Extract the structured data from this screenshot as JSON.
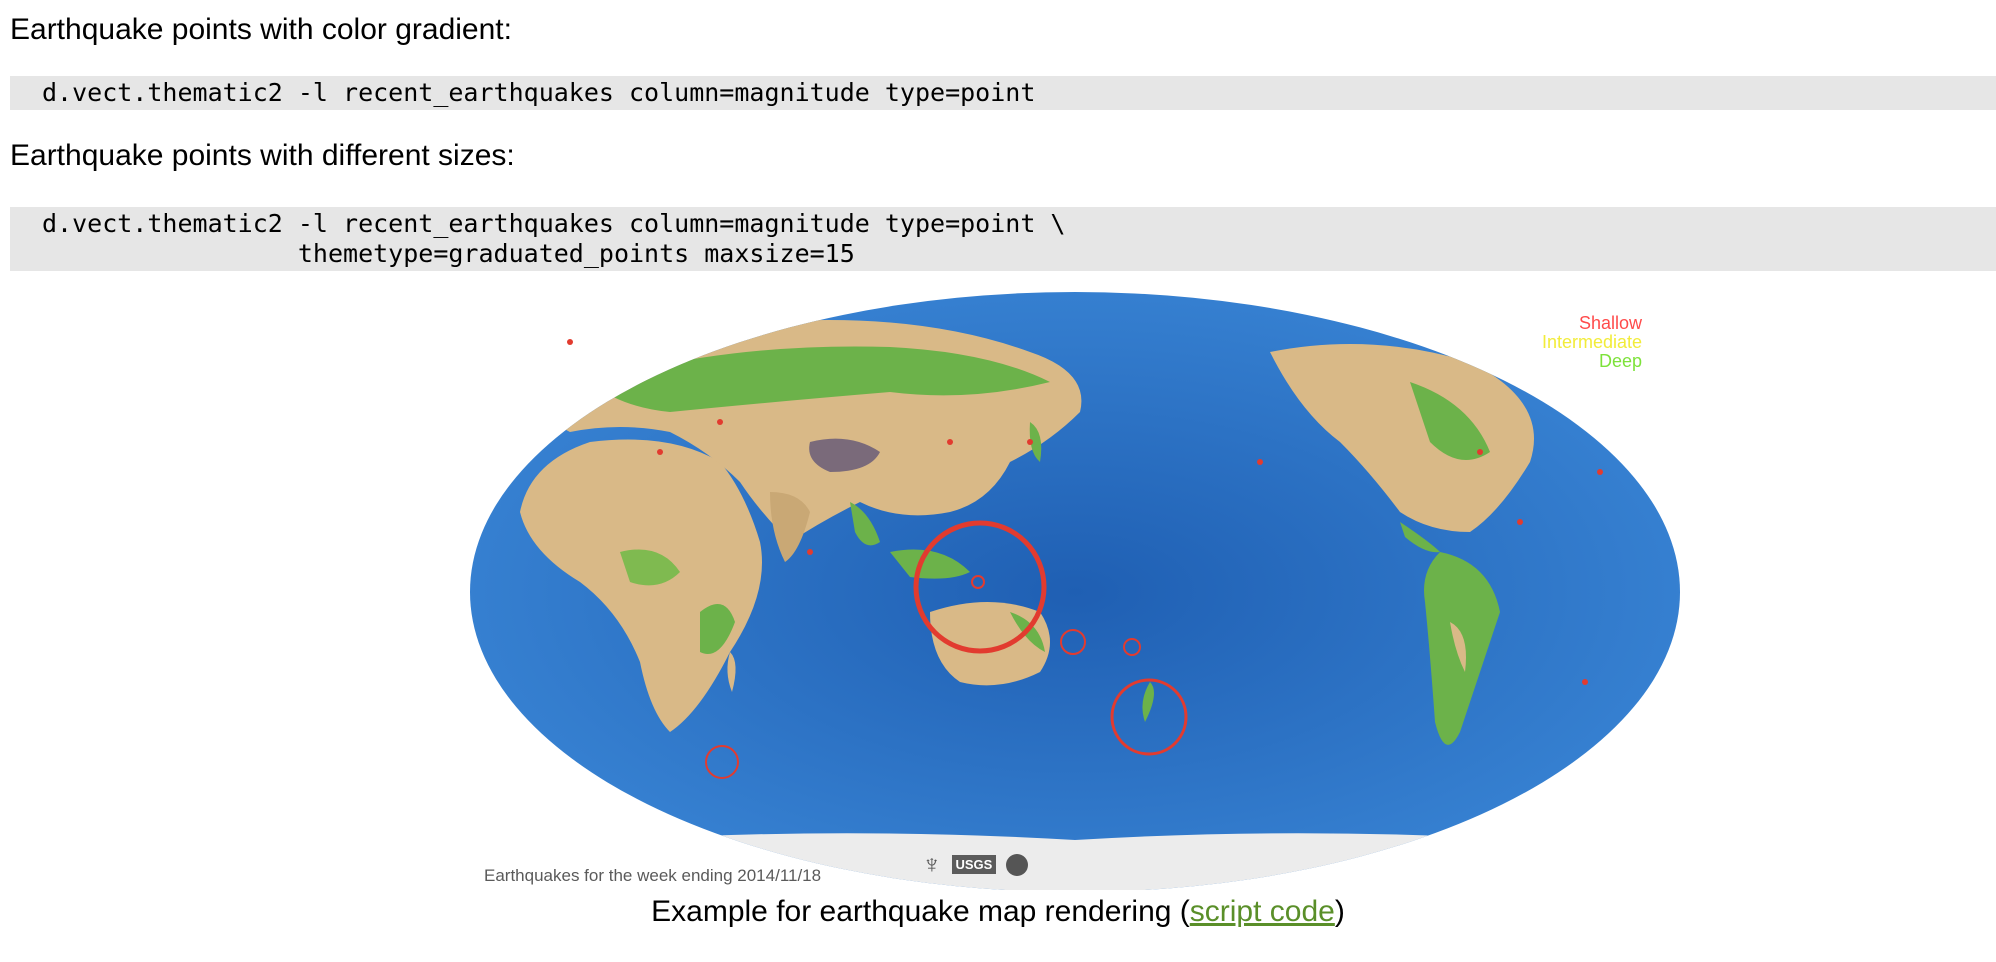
{
  "section1": {
    "heading": "Earthquake points with color gradient:",
    "code": "d.vect.thematic2 -l recent_earthquakes column=magnitude type=point"
  },
  "section2": {
    "heading": "Earthquake points with different sizes:",
    "code": "d.vect.thematic2 -l recent_earthquakes column=magnitude type=point \\\n                 themetype=graduated_points maxsize=15"
  },
  "figure": {
    "legend": {
      "shallow": "Shallow",
      "intermediate": "Intermediate",
      "deep": "Deep"
    },
    "map_caption": "Earthquakes for the week ending 2014/11/18",
    "logo_text": "USGS",
    "colors": {
      "ocean": "#2f6fc0",
      "land": "#d9b987",
      "vegetation": "#6cb24a",
      "ice": "#eeeeee",
      "earthquake": "#e23b2f",
      "shallow": "#ff4b4b",
      "intermediate": "#f2ec3a",
      "deep": "#7de23a"
    }
  },
  "caption": {
    "prefix": "Example for earthquake map rendering (",
    "link": "script code",
    "suffix": ")"
  }
}
